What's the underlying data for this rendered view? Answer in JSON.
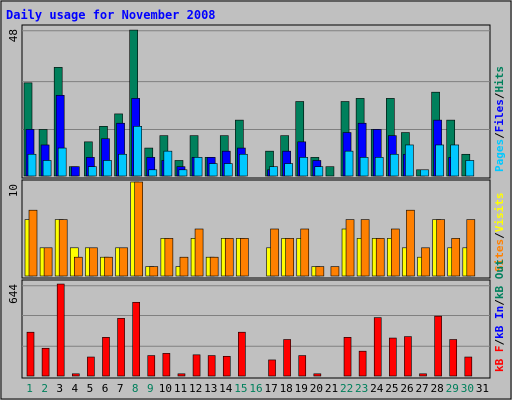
{
  "title": "Daily usage for November 2008",
  "colors": {
    "hits": "#00805c",
    "files": "#0000ff",
    "pages": "#00c8ff",
    "visits": "#ffff00",
    "sites": "#ff8000",
    "kbin": "#0000ff",
    "kbout": "#00805c",
    "kbf": "#ff0000",
    "title": "#0000ff",
    "weekend_day": "#00805c",
    "weekday": "#000000",
    "panel_bg": "#c0c0c0"
  },
  "chart_data": [
    {
      "type": "bar",
      "name_label": "hits-files-pages",
      "categories": [
        "1",
        "2",
        "3",
        "4",
        "5",
        "6",
        "7",
        "8",
        "9",
        "10",
        "11",
        "12",
        "13",
        "14",
        "15",
        "16",
        "17",
        "18",
        "19",
        "20",
        "21",
        "22",
        "23",
        "24",
        "25",
        "26",
        "27",
        "28",
        "29",
        "30",
        "31"
      ],
      "y_max_label": "48",
      "ylim": [
        0,
        48
      ],
      "legend": [
        {
          "key": "pages",
          "label": "Pages"
        },
        {
          "key": "sep1",
          "label": "/"
        },
        {
          "key": "files",
          "label": "Files"
        },
        {
          "key": "sep2",
          "label": "/"
        },
        {
          "key": "hits",
          "label": "Hits"
        }
      ],
      "series": [
        {
          "name": "Hits",
          "values": [
            30,
            15,
            35,
            3,
            11,
            16,
            20,
            47,
            9,
            13,
            5,
            13,
            6,
            13,
            18,
            0,
            8,
            13,
            24,
            6,
            3,
            24,
            25,
            15,
            25,
            14,
            2,
            27,
            18,
            7,
            0
          ]
        },
        {
          "name": "Files",
          "values": [
            15,
            10,
            26,
            3,
            6,
            12,
            17,
            25,
            6,
            5,
            3,
            6,
            6,
            8,
            9,
            0,
            2,
            8,
            11,
            5,
            0,
            14,
            17,
            15,
            13,
            7,
            0,
            18,
            6,
            0,
            0
          ]
        },
        {
          "name": "Pages",
          "values": [
            7,
            5,
            9,
            0,
            3,
            5,
            7,
            16,
            2,
            8,
            2,
            6,
            4,
            4,
            7,
            0,
            3,
            4,
            6,
            3,
            0,
            8,
            6,
            6,
            7,
            10,
            2,
            10,
            10,
            5,
            0
          ]
        }
      ]
    },
    {
      "type": "bar",
      "name_label": "visits-sites",
      "categories": [
        "1",
        "2",
        "3",
        "4",
        "5",
        "6",
        "7",
        "8",
        "9",
        "10",
        "11",
        "12",
        "13",
        "14",
        "15",
        "16",
        "17",
        "18",
        "19",
        "20",
        "21",
        "22",
        "23",
        "24",
        "25",
        "26",
        "27",
        "28",
        "29",
        "30",
        "31"
      ],
      "y_max_label": "10",
      "ylim": [
        0,
        10
      ],
      "legend": [
        {
          "key": "sites",
          "label": "Sites"
        },
        {
          "key": "sep1",
          "label": "/"
        },
        {
          "key": "visits",
          "label": "Visits"
        }
      ],
      "series": [
        {
          "name": "Visits",
          "values": [
            6,
            3,
            6,
            3,
            3,
            2,
            3,
            10,
            1,
            4,
            1,
            4,
            2,
            4,
            4,
            0,
            3,
            4,
            4,
            1,
            0,
            5,
            4,
            4,
            4,
            3,
            2,
            6,
            3,
            3,
            0
          ]
        },
        {
          "name": "Sites",
          "values": [
            7,
            3,
            6,
            2,
            3,
            2,
            3,
            10,
            1,
            4,
            2,
            5,
            2,
            4,
            4,
            0,
            5,
            4,
            5,
            1,
            1,
            6,
            6,
            4,
            5,
            7,
            3,
            6,
            4,
            6,
            0
          ]
        }
      ]
    },
    {
      "type": "bar",
      "name_label": "kbf-kbin-kbout",
      "categories": [
        "1",
        "2",
        "3",
        "4",
        "5",
        "6",
        "7",
        "8",
        "9",
        "10",
        "11",
        "12",
        "13",
        "14",
        "15",
        "16",
        "17",
        "18",
        "19",
        "20",
        "21",
        "22",
        "23",
        "24",
        "25",
        "26",
        "27",
        "28",
        "29",
        "30",
        "31"
      ],
      "y_max_label": "644",
      "ylim": [
        0,
        644
      ],
      "legend": [
        {
          "key": "kbf",
          "label": "kB F"
        },
        {
          "key": "sep1",
          "label": "/"
        },
        {
          "key": "kbin",
          "label": "kB In"
        },
        {
          "key": "sep2",
          "label": "/"
        },
        {
          "key": "kbout",
          "label": "kB Out"
        }
      ],
      "series": [
        {
          "name": "kB F",
          "values": [
            300,
            190,
            630,
            15,
            130,
            265,
            395,
            505,
            140,
            155,
            15,
            145,
            140,
            135,
            300,
            0,
            110,
            250,
            140,
            15,
            0,
            265,
            170,
            400,
            260,
            270,
            15,
            410,
            250,
            130,
            0
          ]
        }
      ]
    }
  ],
  "day_labels": [
    "1",
    "2",
    "3",
    "4",
    "5",
    "6",
    "7",
    "8",
    "9",
    "10",
    "11",
    "12",
    "13",
    "14",
    "15",
    "16",
    "17",
    "18",
    "19",
    "20",
    "21",
    "22",
    "23",
    "24",
    "25",
    "26",
    "27",
    "28",
    "29",
    "30",
    "31"
  ],
  "weekend_days": [
    "1",
    "2",
    "8",
    "9",
    "15",
    "16",
    "22",
    "23",
    "29",
    "30"
  ]
}
